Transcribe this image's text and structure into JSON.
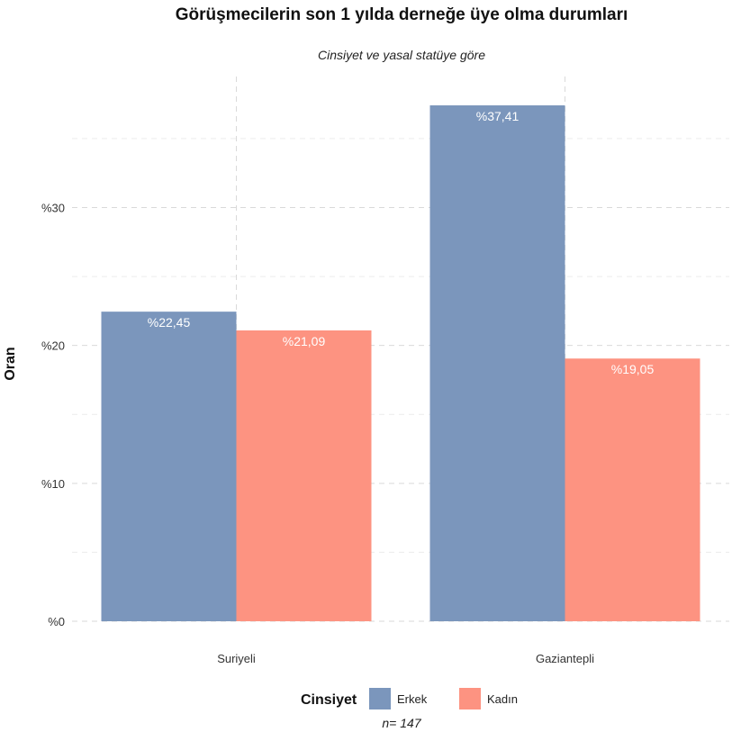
{
  "chart_data": {
    "type": "bar",
    "title": "Görüşmecilerin son 1 yılda derneğe üye olma durumları",
    "subtitle": "Cinsiyet ve yasal statüye göre",
    "xlabel": "",
    "ylabel": "Oran",
    "categories": [
      "Suriyeli",
      "Gaziantepli"
    ],
    "series": [
      {
        "name": "Erkek",
        "values": [
          22.45,
          37.41
        ],
        "labels": [
          "%22,45",
          "%37,41"
        ],
        "color": "#7b96bc"
      },
      {
        "name": "Kadın",
        "values": [
          21.09,
          19.05
        ],
        "labels": [
          "%21,09",
          "%19,05"
        ],
        "color": "#fd9381"
      }
    ],
    "ylim": [
      0,
      39.5
    ],
    "y_ticks": [
      0,
      10,
      20,
      30
    ],
    "y_tick_labels": [
      "%0",
      "%10",
      "%20",
      "%30"
    ],
    "grid": true,
    "legend": {
      "title": "Cinsiyet",
      "placement": "bottom"
    },
    "caption": "n=  147"
  }
}
